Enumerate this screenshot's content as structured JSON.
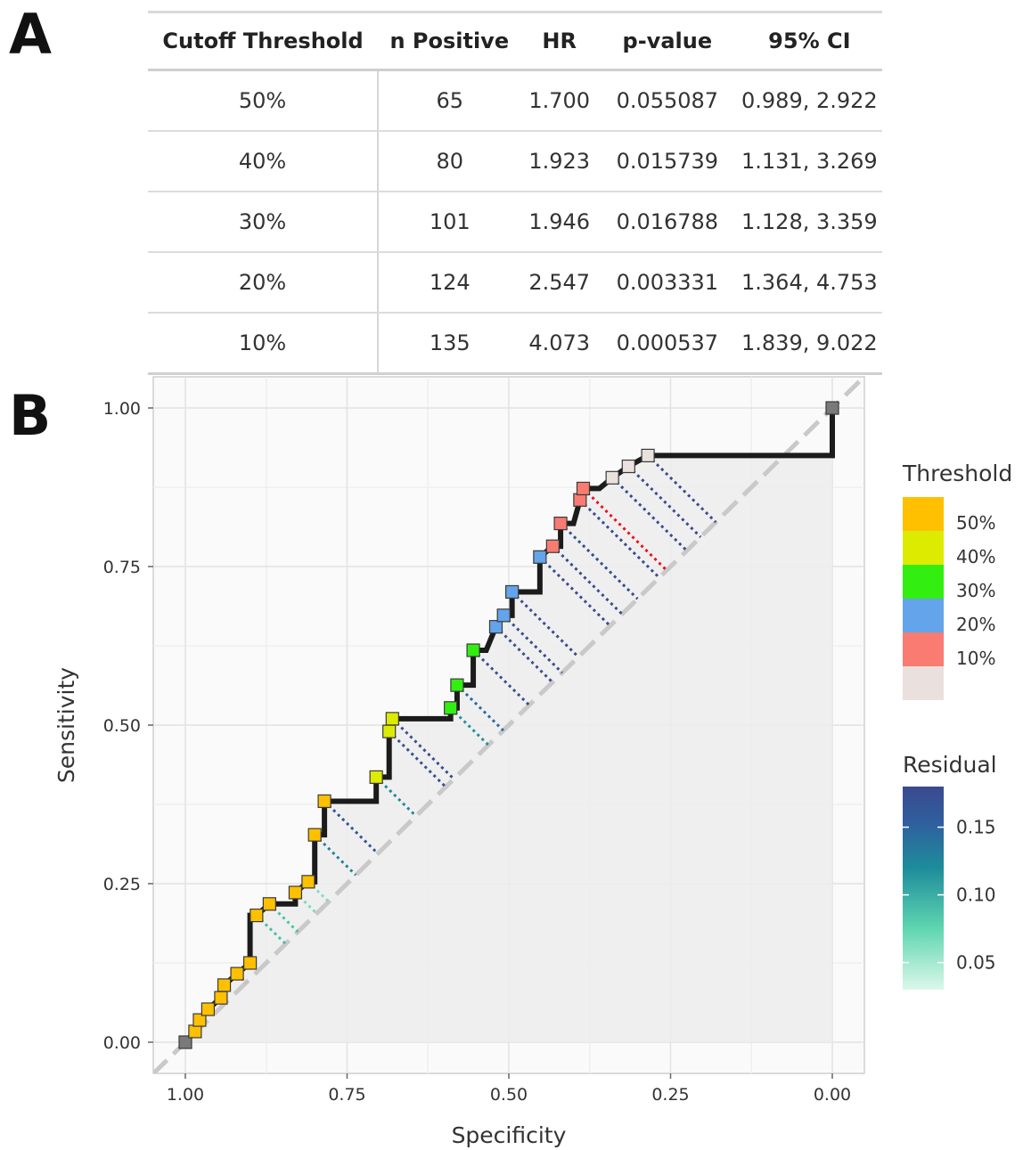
{
  "panels": {
    "a_label": "A",
    "b_label": "B"
  },
  "table": {
    "headers": [
      "Cutoff Threshold",
      "n Positive",
      "HR",
      "p-value",
      "95% CI"
    ],
    "rows": [
      [
        "50%",
        "65",
        "1.700",
        "0.055087",
        "0.989, 2.922"
      ],
      [
        "40%",
        "80",
        "1.923",
        "0.015739",
        "1.131, 3.269"
      ],
      [
        "30%",
        "101",
        "1.946",
        "0.016788",
        "1.128, 3.359"
      ],
      [
        "20%",
        "124",
        "2.547",
        "0.003331",
        "1.364, 4.753"
      ],
      [
        "10%",
        "135",
        "4.073",
        "0.000537",
        "1.839, 9.022"
      ]
    ]
  },
  "chart_data": {
    "type": "line",
    "xlabel": "Specificity",
    "ylabel": "Sensitivity",
    "xlim": [
      1.0,
      0.0
    ],
    "ylim": [
      0.0,
      1.0
    ],
    "x_ticks": [
      "1.00",
      "0.75",
      "0.50",
      "0.25",
      "0.00"
    ],
    "y_ticks": [
      "0.00",
      "0.25",
      "0.50",
      "0.75",
      "1.00"
    ],
    "grid": true,
    "reference_line": "diagonal",
    "legend_position": "right",
    "threshold_legend": {
      "title": "Threshold",
      "items": [
        {
          "label": "50%",
          "color": "#FFC000"
        },
        {
          "label": "40%",
          "color": "#DDEB00"
        },
        {
          "label": "30%",
          "color": "#33EE11"
        },
        {
          "label": "20%",
          "color": "#63A4EA"
        },
        {
          "label": "10%",
          "color": "#F97B72"
        },
        {
          "label": "",
          "color": "#EAE0DE"
        }
      ]
    },
    "residual_legend": {
      "title": "Residual",
      "ticks": [
        "0.15",
        "0.10",
        "0.05"
      ],
      "range": [
        0.03,
        0.18
      ],
      "colors": [
        "#DCF7EA",
        "#5FD6B0",
        "#1E8C9C",
        "#2F5F9E",
        "#3B4A8F"
      ]
    },
    "points": [
      {
        "spec": 1.0,
        "sens": 0.0,
        "group": "end"
      },
      {
        "spec": 0.985,
        "sens": 0.017,
        "group": "50%"
      },
      {
        "spec": 0.978,
        "sens": 0.035,
        "group": "50%"
      },
      {
        "spec": 0.965,
        "sens": 0.052,
        "group": "50%"
      },
      {
        "spec": 0.945,
        "sens": 0.07,
        "group": "50%"
      },
      {
        "spec": 0.94,
        "sens": 0.09,
        "group": "50%"
      },
      {
        "spec": 0.92,
        "sens": 0.108,
        "group": "50%"
      },
      {
        "spec": 0.9,
        "sens": 0.125,
        "group": "50%"
      },
      {
        "spec": 0.89,
        "sens": 0.2,
        "group": "50%"
      },
      {
        "spec": 0.87,
        "sens": 0.218,
        "group": "50%"
      },
      {
        "spec": 0.83,
        "sens": 0.236,
        "group": "50%"
      },
      {
        "spec": 0.81,
        "sens": 0.253,
        "group": "50%"
      },
      {
        "spec": 0.8,
        "sens": 0.327,
        "group": "50%"
      },
      {
        "spec": 0.785,
        "sens": 0.38,
        "group": "50%"
      },
      {
        "spec": 0.705,
        "sens": 0.418,
        "group": "40%"
      },
      {
        "spec": 0.685,
        "sens": 0.49,
        "group": "40%"
      },
      {
        "spec": 0.68,
        "sens": 0.51,
        "group": "40%"
      },
      {
        "spec": 0.59,
        "sens": 0.527,
        "group": "30%"
      },
      {
        "spec": 0.58,
        "sens": 0.563,
        "group": "30%"
      },
      {
        "spec": 0.555,
        "sens": 0.618,
        "group": "30%"
      },
      {
        "spec": 0.52,
        "sens": 0.655,
        "group": "20%"
      },
      {
        "spec": 0.508,
        "sens": 0.673,
        "group": "20%"
      },
      {
        "spec": 0.495,
        "sens": 0.71,
        "group": "20%"
      },
      {
        "spec": 0.452,
        "sens": 0.765,
        "group": "20%"
      },
      {
        "spec": 0.432,
        "sens": 0.782,
        "group": "10%"
      },
      {
        "spec": 0.42,
        "sens": 0.818,
        "group": "10%"
      },
      {
        "spec": 0.39,
        "sens": 0.855,
        "group": "10%"
      },
      {
        "spec": 0.385,
        "sens": 0.873,
        "group": "10%"
      },
      {
        "spec": 0.34,
        "sens": 0.89,
        "group": "other"
      },
      {
        "spec": 0.315,
        "sens": 0.908,
        "group": "other"
      },
      {
        "spec": 0.285,
        "sens": 0.925,
        "group": "other"
      },
      {
        "spec": 0.0,
        "sens": 1.0,
        "group": "end"
      }
    ],
    "curve": [
      [
        1.0,
        0.0
      ],
      [
        0.985,
        0.017
      ],
      [
        0.978,
        0.035
      ],
      [
        0.965,
        0.052
      ],
      [
        0.945,
        0.07
      ],
      [
        0.94,
        0.09
      ],
      [
        0.92,
        0.108
      ],
      [
        0.9,
        0.125
      ],
      [
        0.9,
        0.2
      ],
      [
        0.89,
        0.2
      ],
      [
        0.87,
        0.218
      ],
      [
        0.83,
        0.218
      ],
      [
        0.83,
        0.236
      ],
      [
        0.81,
        0.253
      ],
      [
        0.8,
        0.253
      ],
      [
        0.8,
        0.327
      ],
      [
        0.785,
        0.327
      ],
      [
        0.785,
        0.38
      ],
      [
        0.705,
        0.38
      ],
      [
        0.705,
        0.418
      ],
      [
        0.685,
        0.418
      ],
      [
        0.685,
        0.51
      ],
      [
        0.59,
        0.51
      ],
      [
        0.59,
        0.527
      ],
      [
        0.58,
        0.527
      ],
      [
        0.58,
        0.563
      ],
      [
        0.555,
        0.563
      ],
      [
        0.555,
        0.618
      ],
      [
        0.535,
        0.618
      ],
      [
        0.52,
        0.655
      ],
      [
        0.508,
        0.673
      ],
      [
        0.495,
        0.673
      ],
      [
        0.495,
        0.71
      ],
      [
        0.452,
        0.71
      ],
      [
        0.452,
        0.765
      ],
      [
        0.432,
        0.782
      ],
      [
        0.42,
        0.782
      ],
      [
        0.42,
        0.818
      ],
      [
        0.4,
        0.818
      ],
      [
        0.39,
        0.855
      ],
      [
        0.385,
        0.873
      ],
      [
        0.36,
        0.873
      ],
      [
        0.34,
        0.89
      ],
      [
        0.315,
        0.908
      ],
      [
        0.285,
        0.925
      ],
      [
        0.0,
        0.925
      ],
      [
        0.0,
        1.0
      ]
    ],
    "highlight_residual_color": "#E8141E",
    "highlight_groups": [
      "10%-top",
      "50%-low"
    ]
  }
}
